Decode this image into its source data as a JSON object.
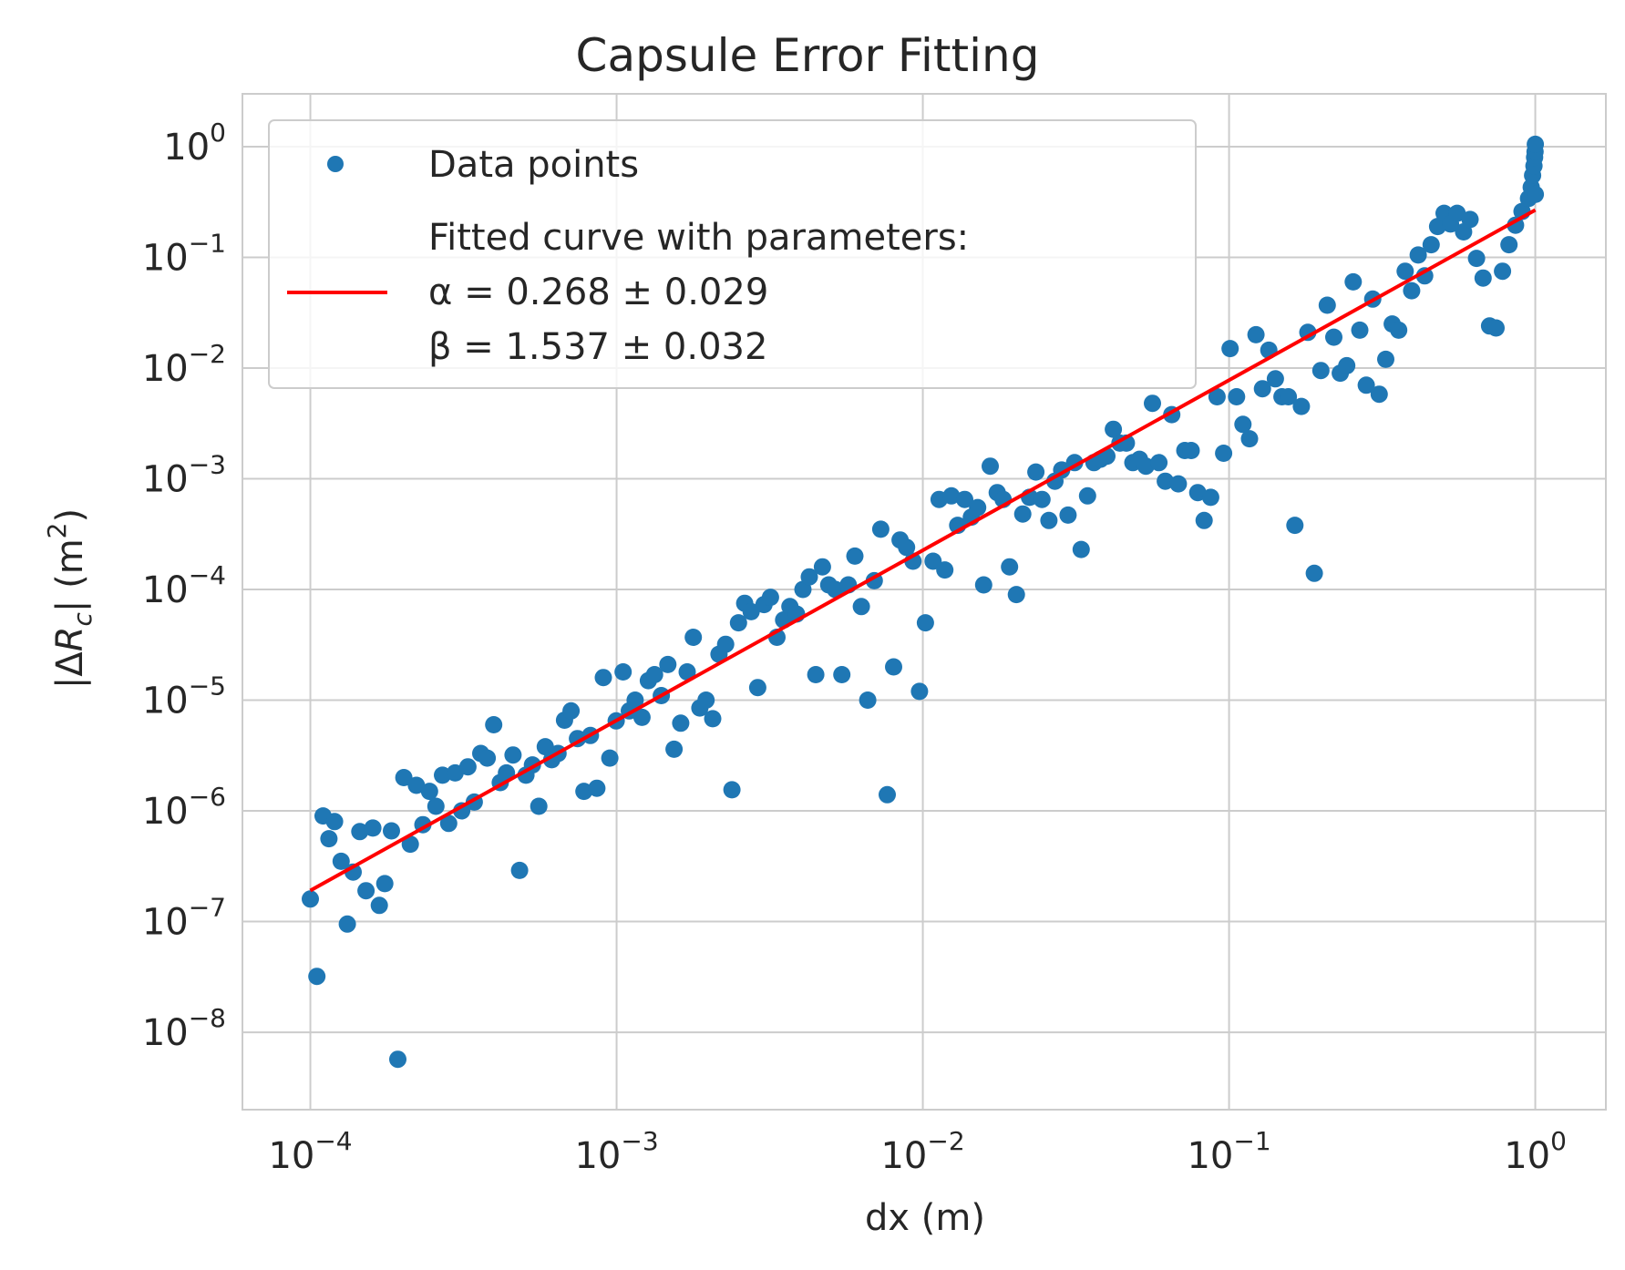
{
  "colors": {
    "points": "#1f77b4",
    "fit": "#ff0000",
    "grid": "#cccccc",
    "frame": "#cccccc",
    "text": "#262626"
  },
  "chart_data": {
    "type": "scatter",
    "title": "Capsule Error Fitting",
    "xlabel": "dx (m)",
    "ylabel": "|ΔRc| (m²)",
    "xscale": "log",
    "yscale": "log",
    "xlim": [
      6e-05,
      1.7
    ],
    "ylim": [
      2e-09,
      3.0
    ],
    "grid": true,
    "legend_position": "top-left",
    "x_ticks": [
      {
        "base": "10",
        "exp": "−4",
        "value": 0.0001
      },
      {
        "base": "10",
        "exp": "−3",
        "value": 0.001
      },
      {
        "base": "10",
        "exp": "−2",
        "value": 0.01
      },
      {
        "base": "10",
        "exp": "−1",
        "value": 0.1
      },
      {
        "base": "10",
        "exp": "0",
        "value": 1
      }
    ],
    "y_ticks": [
      {
        "base": "10",
        "exp": "0",
        "value": 1
      },
      {
        "base": "10",
        "exp": "−1",
        "value": 0.1
      },
      {
        "base": "10",
        "exp": "−2",
        "value": 0.01
      },
      {
        "base": "10",
        "exp": "−3",
        "value": 0.001
      },
      {
        "base": "10",
        "exp": "−4",
        "value": 0.0001
      },
      {
        "base": "10",
        "exp": "−5",
        "value": 1e-05
      },
      {
        "base": "10",
        "exp": "−6",
        "value": 1e-06
      },
      {
        "base": "10",
        "exp": "−7",
        "value": 1e-07
      },
      {
        "base": "10",
        "exp": "−8",
        "value": 1e-08
      }
    ],
    "series": [
      {
        "name": "Data points",
        "kind": "scatter",
        "points": [
          [
            0.0001,
            1.6e-07
          ],
          [
            0.000105,
            3.2e-08
          ],
          [
            0.00011,
            9e-07
          ],
          [
            0.000115,
            5.6e-07
          ],
          [
            0.00012,
            8e-07
          ],
          [
            0.000126,
            3.5e-07
          ],
          [
            0.000132,
            9.5e-08
          ],
          [
            0.000138,
            2.8e-07
          ],
          [
            0.000145,
            6.5e-07
          ],
          [
            0.000152,
            1.9e-07
          ],
          [
            0.00016,
            7e-07
          ],
          [
            0.000168,
            1.4e-07
          ],
          [
            0.000175,
            2.2e-07
          ],
          [
            0.000184,
            6.6e-07
          ],
          [
            0.000193,
            5.7e-09
          ],
          [
            0.000202,
            2e-06
          ],
          [
            0.000212,
            5e-07
          ],
          [
            0.000222,
            1.7e-06
          ],
          [
            0.000233,
            7.5e-07
          ],
          [
            0.000245,
            1.5e-06
          ],
          [
            0.000257,
            1.1e-06
          ],
          [
            0.00027,
            2.1e-06
          ],
          [
            0.000283,
            7.7e-07
          ],
          [
            0.000297,
            2.2e-06
          ],
          [
            0.000312,
            1e-06
          ],
          [
            0.000327,
            2.5e-06
          ],
          [
            0.000343,
            1.2e-06
          ],
          [
            0.00036,
            3.3e-06
          ],
          [
            0.000378,
            3e-06
          ],
          [
            0.000397,
            6e-06
          ],
          [
            0.000417,
            1.8e-06
          ],
          [
            0.000437,
            2.2e-06
          ],
          [
            0.000459,
            3.2e-06
          ],
          [
            0.000482,
            2.9e-07
          ],
          [
            0.000506,
            2.1e-06
          ],
          [
            0.000531,
            2.6e-06
          ],
          [
            0.000557,
            1.1e-06
          ],
          [
            0.000585,
            3.8e-06
          ],
          [
            0.000614,
            2.9e-06
          ],
          [
            0.000644,
            3.3e-06
          ],
          [
            0.000676,
            6.6e-06
          ],
          [
            0.00071,
            8e-06
          ],
          [
            0.000745,
            4.5e-06
          ],
          [
            0.000782,
            1.5e-06
          ],
          [
            0.000821,
            4.8e-06
          ],
          [
            0.000862,
            1.6e-06
          ],
          [
            0.000905,
            1.6e-05
          ],
          [
            0.00095,
            3e-06
          ],
          [
            0.000997,
            6.5e-06
          ],
          [
            0.00105,
            1.8e-05
          ],
          [
            0.0011,
            8e-06
          ],
          [
            0.00115,
            1e-05
          ],
          [
            0.00121,
            7e-06
          ],
          [
            0.00127,
            1.5e-05
          ],
          [
            0.00133,
            1.7e-05
          ],
          [
            0.0014,
            1.1e-05
          ],
          [
            0.00147,
            2.1e-05
          ],
          [
            0.00154,
            3.6e-06
          ],
          [
            0.00162,
            6.2e-06
          ],
          [
            0.0017,
            1.8e-05
          ],
          [
            0.00178,
            3.7e-05
          ],
          [
            0.00187,
            8.5e-06
          ],
          [
            0.00196,
            1e-05
          ],
          [
            0.00206,
            6.8e-06
          ],
          [
            0.00216,
            2.6e-05
          ],
          [
            0.00227,
            3.2e-05
          ],
          [
            0.00238,
            1.55e-06
          ],
          [
            0.0025,
            5e-05
          ],
          [
            0.00262,
            7.5e-05
          ],
          [
            0.00275,
            6.3e-05
          ],
          [
            0.00289,
            1.3e-05
          ],
          [
            0.00303,
            7.3e-05
          ],
          [
            0.00318,
            8.5e-05
          ],
          [
            0.00334,
            3.7e-05
          ],
          [
            0.00351,
            5.3e-05
          ],
          [
            0.00368,
            7e-05
          ],
          [
            0.00387,
            6e-05
          ],
          [
            0.00406,
            0.0001
          ],
          [
            0.00426,
            0.00013
          ],
          [
            0.00447,
            1.7e-05
          ],
          [
            0.0047,
            0.00016
          ],
          [
            0.00493,
            0.00011
          ],
          [
            0.00518,
            0.0001
          ],
          [
            0.00544,
            1.7e-05
          ],
          [
            0.00571,
            0.00011
          ],
          [
            0.006,
            0.0002
          ],
          [
            0.0063,
            7e-05
          ],
          [
            0.00661,
            1e-05
          ],
          [
            0.00694,
            0.00012
          ],
          [
            0.00729,
            0.00035
          ],
          [
            0.00765,
            1.4e-06
          ],
          [
            0.00803,
            2e-05
          ],
          [
            0.00843,
            0.00028
          ],
          [
            0.00885,
            0.00024
          ],
          [
            0.00929,
            0.00018
          ],
          [
            0.00975,
            1.2e-05
          ],
          [
            0.0102,
            5e-05
          ],
          [
            0.0108,
            0.00018
          ],
          [
            0.0113,
            0.00065
          ],
          [
            0.0118,
            0.00015
          ],
          [
            0.0124,
            0.0007
          ],
          [
            0.013,
            0.00038
          ],
          [
            0.0137,
            0.00065
          ],
          [
            0.0144,
            0.00045
          ],
          [
            0.0151,
            0.00055
          ],
          [
            0.0158,
            0.00011
          ],
          [
            0.0166,
            0.0013
          ],
          [
            0.0175,
            0.00075
          ],
          [
            0.0183,
            0.00065
          ],
          [
            0.0192,
            0.00016
          ],
          [
            0.0202,
            9e-05
          ],
          [
            0.0212,
            0.00048
          ],
          [
            0.0223,
            0.00068
          ],
          [
            0.0234,
            0.00115
          ],
          [
            0.0245,
            0.00065
          ],
          [
            0.0258,
            0.00042
          ],
          [
            0.027,
            0.00095
          ],
          [
            0.0284,
            0.0012
          ],
          [
            0.0298,
            0.00047
          ],
          [
            0.0313,
            0.0014
          ],
          [
            0.0329,
            0.00023
          ],
          [
            0.0345,
            0.0007
          ],
          [
            0.0362,
            0.0014
          ],
          [
            0.038,
            0.0015
          ],
          [
            0.0399,
            0.0016
          ],
          [
            0.0419,
            0.0028
          ],
          [
            0.044,
            0.0021
          ],
          [
            0.0462,
            0.0021
          ],
          [
            0.0485,
            0.0014
          ],
          [
            0.051,
            0.0015
          ],
          [
            0.0535,
            0.0013
          ],
          [
            0.0562,
            0.0048
          ],
          [
            0.059,
            0.0014
          ],
          [
            0.0619,
            0.00095
          ],
          [
            0.065,
            0.0038
          ],
          [
            0.0683,
            0.0009
          ],
          [
            0.0717,
            0.0018
          ],
          [
            0.0752,
            0.0018
          ],
          [
            0.079,
            0.00075
          ],
          [
            0.0829,
            0.00042
          ],
          [
            0.0871,
            0.00068
          ],
          [
            0.0914,
            0.0055
          ],
          [
            0.096,
            0.0017
          ],
          [
            0.1008,
            0.015
          ],
          [
            0.1058,
            0.0055
          ],
          [
            0.111,
            0.0031
          ],
          [
            0.1166,
            0.0023
          ],
          [
            0.1224,
            0.02
          ],
          [
            0.1285,
            0.0065
          ],
          [
            0.1349,
            0.0145
          ],
          [
            0.1417,
            0.008
          ],
          [
            0.1488,
            0.0055
          ],
          [
            0.1562,
            0.0055
          ],
          [
            0.164,
            0.00038
          ],
          [
            0.1722,
            0.0045
          ],
          [
            0.1808,
            0.021
          ],
          [
            0.1899,
            0.00014
          ],
          [
            0.1994,
            0.0095
          ],
          [
            0.2093,
            0.037
          ],
          [
            0.2198,
            0.019
          ],
          [
            0.2308,
            0.009
          ],
          [
            0.2423,
            0.0105
          ],
          [
            0.2544,
            0.06
          ],
          [
            0.2672,
            0.022
          ],
          [
            0.2805,
            0.007
          ],
          [
            0.2946,
            0.042
          ],
          [
            0.3093,
            0.0058
          ],
          [
            0.3248,
            0.012
          ],
          [
            0.341,
            0.025
          ],
          [
            0.358,
            0.022
          ],
          [
            0.376,
            0.075
          ],
          [
            0.3948,
            0.05
          ],
          [
            0.4145,
            0.105
          ],
          [
            0.4352,
            0.068
          ],
          [
            0.457,
            0.13
          ],
          [
            0.4798,
            0.19
          ],
          [
            0.5038,
            0.25
          ],
          [
            0.529,
            0.2
          ],
          [
            0.5555,
            0.25
          ],
          [
            0.5833,
            0.17
          ],
          [
            0.6124,
            0.22
          ],
          [
            0.643,
            0.098
          ],
          [
            0.6752,
            0.065
          ],
          [
            0.709,
            0.024
          ],
          [
            0.7444,
            0.023
          ],
          [
            0.7816,
            0.075
          ],
          [
            0.8207,
            0.13
          ],
          [
            0.8618,
            0.195
          ],
          [
            0.9049,
            0.26
          ],
          [
            0.95,
            0.34
          ],
          [
            0.97,
            0.43
          ],
          [
            0.98,
            0.55
          ],
          [
            0.99,
            0.67
          ],
          [
            0.995,
            0.8
          ],
          [
            0.998,
            0.9
          ],
          [
            1.0,
            1.05
          ],
          [
            1.0,
            0.37
          ]
        ]
      },
      {
        "name": "Fitted curve with parameters:",
        "legend_lines": [
          "α = 0.268 ± 0.029",
          "β = 1.537 ± 0.032"
        ],
        "kind": "line",
        "alpha": 0.268,
        "beta": 1.537,
        "x_range": [
          0.0001,
          1.0
        ]
      }
    ]
  }
}
